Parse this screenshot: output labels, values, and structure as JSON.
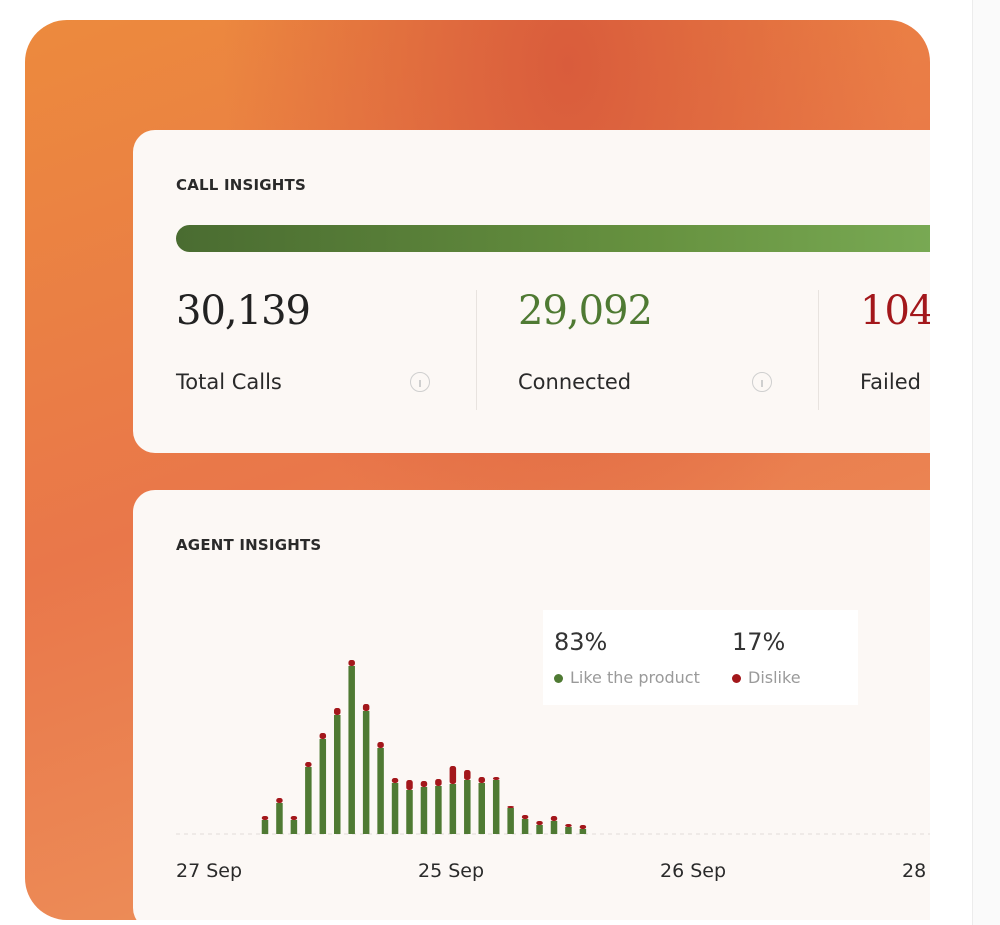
{
  "call_insights": {
    "title": "CALL INSIGHTS",
    "metrics": [
      {
        "value": "30,139",
        "label": "Total Calls",
        "color": "#222222"
      },
      {
        "value": "29,092",
        "label": "Connected",
        "color": "#4f7a33"
      },
      {
        "value": "104",
        "label": "Failed",
        "color": "#a3171b"
      }
    ]
  },
  "agent_insights": {
    "title": "AGENT INSIGHTS",
    "legend": [
      {
        "percent": "83%",
        "label": "Like the product"
      },
      {
        "percent": "17%",
        "label": "Dislike"
      }
    ]
  },
  "chart_data": {
    "type": "bar",
    "stacked": true,
    "x_labels": [
      "27 Sep",
      "25 Sep",
      "26 Sep",
      "28"
    ],
    "series": [
      {
        "name": "Like the product",
        "color": "#4f7a33",
        "values": [
          14,
          31,
          14,
          67,
          95,
          119,
          168,
          123,
          86,
          51,
          44,
          47,
          48,
          50,
          54,
          51,
          54,
          26,
          15,
          9,
          13,
          7,
          5
        ]
      },
      {
        "name": "Dislike",
        "color": "#a3171b",
        "values": [
          4,
          5,
          4,
          5,
          6,
          7,
          6,
          7,
          6,
          5,
          10,
          6,
          7,
          18,
          10,
          6,
          3,
          2,
          4,
          4,
          5,
          3,
          4
        ]
      }
    ],
    "ylim": [
      0,
      200
    ]
  }
}
